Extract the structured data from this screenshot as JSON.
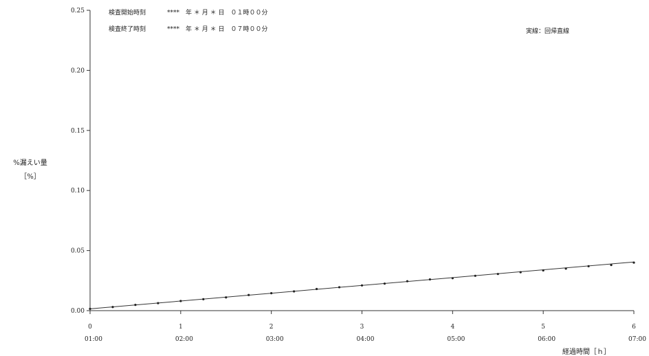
{
  "header": {
    "start_label": "検査開始時刻",
    "start_value": "****　年 ＊ 月 ＊ 日　０１時００分",
    "end_label": "検査終了時刻",
    "end_value": "****　年 ＊ 月 ＊ 日　０７時００分"
  },
  "legend": {
    "text": "実線：回帰直線"
  },
  "chart_data": {
    "type": "scatter",
    "title": "",
    "ylabel": "%漏えい量",
    "ylabel_unit": "［%］",
    "xlabel": "経過時間［ｈ］",
    "xlim": [
      0,
      6
    ],
    "ylim": [
      0,
      0.25
    ],
    "yticks": [
      "0.00",
      "0.05",
      "0.10",
      "0.15",
      "0.20",
      "0.25"
    ],
    "xticks": [
      "0",
      "1",
      "2",
      "3",
      "4",
      "5",
      "6"
    ],
    "xticks_time": [
      "01:00",
      "02:00",
      "03:00",
      "04:00",
      "05:00",
      "06:00",
      "07:00"
    ],
    "regression_line": [
      [
        0,
        0.0015
      ],
      [
        6,
        0.0405
      ]
    ],
    "points": {
      "x": [
        0,
        0.25,
        0.5,
        0.75,
        1.0,
        1.25,
        1.5,
        1.75,
        2.0,
        2.25,
        2.5,
        2.75,
        3.0,
        3.25,
        3.5,
        3.75,
        4.0,
        4.25,
        4.5,
        4.75,
        5.0,
        5.25,
        5.5,
        5.75,
        6.0
      ],
      "y": [
        0.0015,
        0.003,
        0.0048,
        0.0062,
        0.008,
        0.0095,
        0.011,
        0.013,
        0.0145,
        0.016,
        0.018,
        0.0195,
        0.021,
        0.0225,
        0.0245,
        0.026,
        0.027,
        0.029,
        0.0305,
        0.032,
        0.0335,
        0.035,
        0.037,
        0.038,
        0.04
      ]
    },
    "grid": false
  }
}
